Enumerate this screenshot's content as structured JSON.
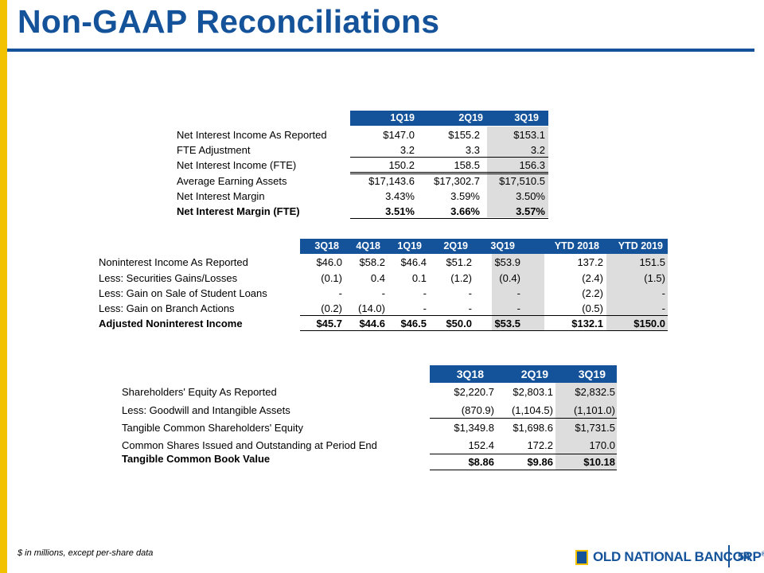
{
  "title": "Non-GAAP Reconciliations",
  "colors": {
    "brand_blue": "#14539A",
    "accent_yellow": "#F2C200",
    "shade_gray": "#DDDDDD"
  },
  "table1": {
    "headers": [
      "1Q19",
      "2Q19",
      "3Q19"
    ],
    "rows": [
      {
        "label": "Net Interest Income As Reported",
        "values": [
          "$147.0",
          "$155.2",
          "$153.1"
        ]
      },
      {
        "label": "FTE Adjustment",
        "values": [
          "3.2",
          "3.3",
          "3.2"
        ]
      },
      {
        "label": "Net Interest Income (FTE)",
        "values": [
          "150.2",
          "158.5",
          "156.3"
        ]
      },
      {
        "label": "Average Earning Assets",
        "values": [
          "$17,143.6",
          "$17,302.7",
          "$17,510.5"
        ]
      },
      {
        "label": "Net Interest Margin",
        "values": [
          "3.43%",
          "3.59%",
          "3.50%"
        ]
      },
      {
        "label": "Net Interest Margin (FTE)",
        "values": [
          "3.51%",
          "3.66%",
          "3.57%"
        ]
      }
    ]
  },
  "table2": {
    "headers": [
      "3Q18",
      "4Q18",
      "1Q19",
      "2Q19",
      "3Q19",
      "YTD 2018",
      "YTD 2019"
    ],
    "rows": [
      {
        "label": "Noninterest Income As Reported",
        "values": [
          "$46.0",
          "$58.2",
          "$46.4",
          "$51.2",
          "$53.9",
          "137.2",
          "151.5"
        ]
      },
      {
        "label": "Less: Securities Gains/Losses",
        "values": [
          "(0.1)",
          "0.4",
          "0.1",
          "(1.2)",
          "(0.4)",
          "(2.4)",
          "(1.5)"
        ]
      },
      {
        "label": "Less: Gain on Sale of Student Loans",
        "values": [
          "-",
          "-",
          "-",
          "-",
          "-",
          "(2.2)",
          "-"
        ]
      },
      {
        "label": "Less: Gain on Branch Actions",
        "values": [
          "(0.2)",
          "(14.0)",
          "-",
          "-",
          "-",
          "(0.5)",
          "-"
        ]
      },
      {
        "label": "Adjusted Noninterest Income",
        "values": [
          "$45.7",
          "$44.6",
          "$46.5",
          "$50.0",
          "$53.5",
          "$132.1",
          "$150.0"
        ]
      }
    ]
  },
  "table3": {
    "headers": [
      "3Q18",
      "2Q19",
      "3Q19"
    ],
    "rows": [
      {
        "label": "Shareholders' Equity As Reported",
        "values": [
          "$2,220.7",
          "$2,803.1",
          "$2,832.5"
        ]
      },
      {
        "label": "Less: Goodwill and Intangible Assets",
        "values": [
          "(870.9)",
          "(1,104.5)",
          "(1,101.0)"
        ]
      },
      {
        "label": "Tangible Common Shareholders' Equity",
        "values": [
          "$1,349.8",
          "$1,698.6",
          "$1,731.5"
        ]
      },
      {
        "label": "Common Shares Issued and Outstanding at Period End",
        "values": [
          "152.4",
          "172.2",
          "170.0"
        ]
      },
      {
        "label": "Tangible Common Book Value",
        "values": [
          "$8.86",
          "$9.86",
          "$10.18"
        ]
      }
    ]
  },
  "footnote": "$ in millions, except per-share data",
  "logo": {
    "name": "OLD NATIONAL BANCORP",
    "mark": "®",
    "icon": "bank-logo-icon"
  },
  "page_number": "54"
}
